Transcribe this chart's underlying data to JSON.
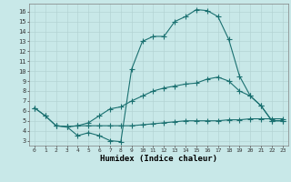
{
  "xlabel": "Humidex (Indice chaleur)",
  "background_color": "#c8e8e8",
  "line_color": "#1a7070",
  "xlim": [
    -0.5,
    23.5
  ],
  "ylim": [
    2.5,
    16.8
  ],
  "xticks": [
    0,
    1,
    2,
    3,
    4,
    5,
    6,
    7,
    8,
    9,
    10,
    11,
    12,
    13,
    14,
    15,
    16,
    17,
    18,
    19,
    20,
    21,
    22,
    23
  ],
  "yticks": [
    3,
    4,
    5,
    6,
    7,
    8,
    9,
    10,
    11,
    12,
    13,
    14,
    15,
    16
  ],
  "curve1_x": [
    0,
    1,
    2,
    3,
    4,
    5,
    6,
    7,
    8,
    9,
    10,
    11,
    12,
    13,
    14,
    15,
    16,
    17,
    18,
    19,
    20,
    21,
    22,
    23
  ],
  "curve1_y": [
    6.3,
    5.5,
    4.5,
    4.4,
    3.5,
    3.8,
    3.5,
    3.0,
    2.9,
    10.2,
    13.0,
    13.5,
    13.5,
    15.0,
    15.5,
    16.2,
    16.1,
    15.5,
    13.2,
    9.5,
    7.5,
    6.5,
    5.0,
    5.0
  ],
  "curve2_x": [
    0,
    1,
    2,
    3,
    4,
    5,
    6,
    7,
    8,
    9,
    10,
    11,
    12,
    13,
    14,
    15,
    16,
    17,
    18,
    19,
    20,
    21,
    22,
    23
  ],
  "curve2_y": [
    6.3,
    5.5,
    4.5,
    4.4,
    4.5,
    4.8,
    5.5,
    6.2,
    6.4,
    7.0,
    7.5,
    8.0,
    8.3,
    8.5,
    8.7,
    8.8,
    9.2,
    9.4,
    9.0,
    8.0,
    7.5,
    6.5,
    5.0,
    5.0
  ],
  "curve3_x": [
    2,
    3,
    4,
    5,
    6,
    7,
    8,
    9,
    10,
    11,
    12,
    13,
    14,
    15,
    16,
    17,
    18,
    19,
    20,
    21,
    22,
    23
  ],
  "curve3_y": [
    4.5,
    4.4,
    4.5,
    4.5,
    4.5,
    4.5,
    4.5,
    4.5,
    4.6,
    4.7,
    4.8,
    4.9,
    5.0,
    5.0,
    5.0,
    5.0,
    5.1,
    5.1,
    5.2,
    5.2,
    5.2,
    5.2
  ]
}
